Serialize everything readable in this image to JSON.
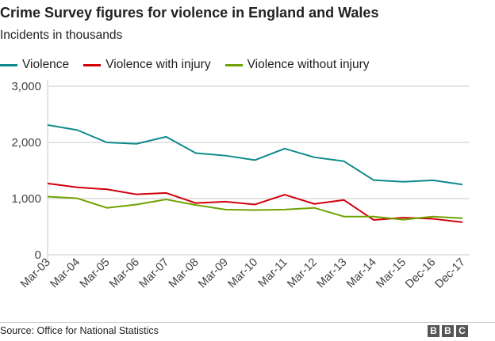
{
  "chart_data": {
    "type": "line",
    "title": "Crime Survey figures for violence in England and Wales",
    "subtitle": "Incidents in thousands",
    "categories": [
      "Mar-03",
      "Mar-04",
      "Mar-05",
      "Mar-06",
      "Mar-07",
      "Mar-08",
      "Mar-09",
      "Mar-10",
      "Mar-11",
      "Mar-12",
      "Mar-13",
      "Mar-14",
      "Mar-15",
      "Dec-16",
      "Dec-17"
    ],
    "series": [
      {
        "name": "Violence",
        "color": "#0f8a8c",
        "values": [
          2310,
          2220,
          2000,
          1975,
          2100,
          1810,
          1765,
          1685,
          1890,
          1735,
          1665,
          1330,
          1300,
          1325,
          1250
        ]
      },
      {
        "name": "Violence with injury",
        "color": "#d1000b",
        "values": [
          1270,
          1200,
          1165,
          1075,
          1100,
          920,
          945,
          895,
          1070,
          905,
          975,
          620,
          660,
          640,
          580
        ]
      },
      {
        "name": "Violence without injury",
        "color": "#6ea300",
        "values": [
          1035,
          1005,
          835,
          895,
          985,
          885,
          805,
          795,
          805,
          835,
          680,
          680,
          625,
          680,
          650
        ]
      }
    ],
    "yticks": [
      "0",
      "1,000",
      "2,000",
      "3,000"
    ],
    "ylim": [
      0,
      3000
    ],
    "grid": true,
    "legend_position": "top-left"
  },
  "footer": {
    "source": "Source: Office for National Statistics",
    "logo": "BBC"
  }
}
